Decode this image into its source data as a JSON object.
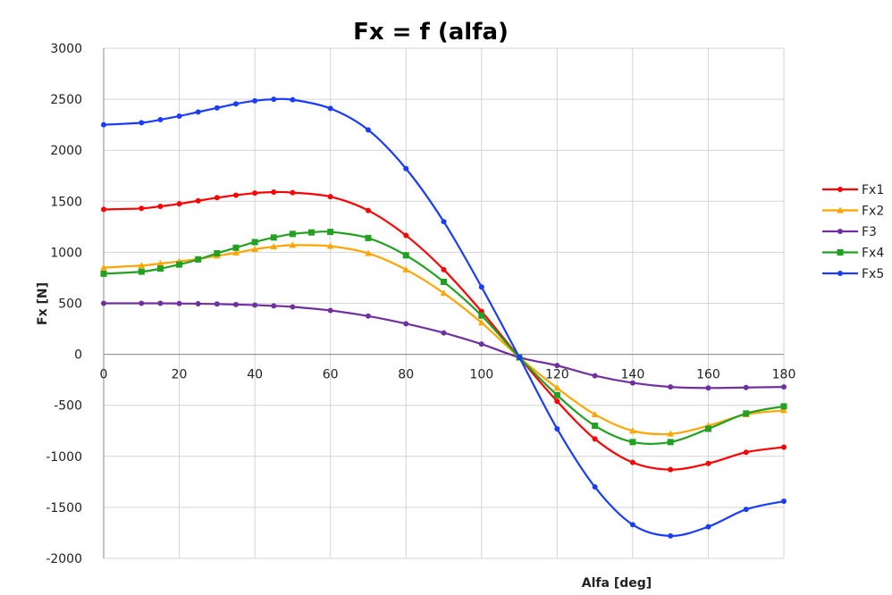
{
  "chart_data": {
    "type": "line",
    "title": "Fx = f (alfa)",
    "xlabel": "Alfa [deg]",
    "ylabel": "Fx  [N]",
    "xlim": [
      0,
      180
    ],
    "ylim": [
      -2000,
      3000
    ],
    "x_ticks": [
      0,
      20,
      40,
      60,
      80,
      100,
      120,
      140,
      160,
      180
    ],
    "y_ticks": [
      3000,
      2500,
      2000,
      1500,
      1000,
      500,
      0,
      -500,
      -1000,
      -1500,
      -2000
    ],
    "grid": true,
    "legend_position": "right",
    "series": [
      {
        "name": "Fx1",
        "color": "#ff0000",
        "marker": "circle",
        "x": [
          0,
          10,
          15,
          20,
          25,
          30,
          35,
          40,
          45,
          50,
          60,
          70,
          80,
          90,
          100,
          110,
          120,
          130,
          140,
          150,
          160,
          170,
          180
        ],
        "y": [
          1420,
          1430,
          1450,
          1475,
          1505,
          1535,
          1560,
          1580,
          1590,
          1585,
          1545,
          1410,
          1165,
          830,
          420,
          -30,
          -460,
          -830,
          -1060,
          -1130,
          -1070,
          -960,
          -910
        ]
      },
      {
        "name": "Fx2",
        "color": "#ffa500",
        "marker": "triangle",
        "x": [
          0,
          10,
          15,
          20,
          25,
          30,
          35,
          40,
          45,
          50,
          60,
          70,
          80,
          90,
          100,
          110,
          120,
          130,
          140,
          150,
          160,
          170,
          180
        ],
        "y": [
          850,
          870,
          890,
          910,
          935,
          965,
          995,
          1030,
          1055,
          1070,
          1060,
          990,
          830,
          600,
          310,
          -30,
          -330,
          -590,
          -750,
          -780,
          -700,
          -590,
          -550
        ]
      },
      {
        "name": "F3",
        "color": "#7030a0",
        "marker": "circle",
        "x": [
          0,
          10,
          15,
          20,
          25,
          30,
          35,
          40,
          45,
          50,
          60,
          70,
          80,
          90,
          100,
          110,
          120,
          130,
          140,
          150,
          160,
          170,
          180
        ],
        "y": [
          500,
          500,
          500,
          498,
          496,
          493,
          488,
          483,
          475,
          465,
          430,
          375,
          300,
          210,
          100,
          -30,
          -110,
          -210,
          -280,
          -320,
          -330,
          -325,
          -320
        ]
      },
      {
        "name": "Fx4",
        "color": "#22a022",
        "marker": "square",
        "x": [
          0,
          10,
          15,
          20,
          25,
          30,
          35,
          40,
          45,
          50,
          55,
          60,
          70,
          80,
          90,
          100,
          110,
          120,
          130,
          140,
          150,
          160,
          170,
          180
        ],
        "y": [
          790,
          810,
          840,
          880,
          930,
          990,
          1045,
          1100,
          1145,
          1180,
          1195,
          1200,
          1140,
          970,
          710,
          380,
          -30,
          -400,
          -700,
          -860,
          -860,
          -730,
          -580,
          -510
        ]
      },
      {
        "name": "Fx5",
        "color": "#1a3cff",
        "marker": "circle",
        "x": [
          0,
          10,
          15,
          20,
          25,
          30,
          35,
          40,
          45,
          50,
          60,
          70,
          80,
          90,
          100,
          110,
          120,
          130,
          140,
          150,
          160,
          170,
          180
        ],
        "y": [
          2250,
          2270,
          2300,
          2335,
          2375,
          2415,
          2455,
          2485,
          2500,
          2495,
          2410,
          2200,
          1820,
          1300,
          660,
          -30,
          -730,
          -1300,
          -1670,
          -1780,
          -1690,
          -1520,
          -1440
        ]
      }
    ]
  }
}
